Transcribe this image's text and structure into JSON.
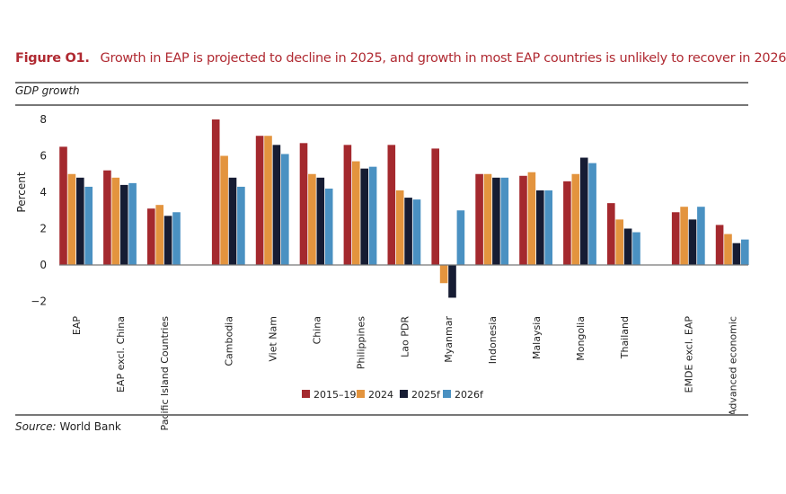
{
  "figure": {
    "label": "Figure O1.",
    "title": "Growth in EAP is projected to decline in 2025, and growth in most EAP countries is unlikely to recover in 2026",
    "subtitle": "GDP growth",
    "source_label": "Source:",
    "source_text": "World Bank"
  },
  "chart_data": {
    "type": "bar",
    "ylabel": "Percent",
    "ylim": [
      -2,
      8
    ],
    "yticks": [
      -2,
      0,
      2,
      4,
      6,
      8
    ],
    "ytick_labels": [
      "−2",
      "0",
      "2",
      "4",
      "6",
      "8"
    ],
    "legend_position": "bottom",
    "grid": false,
    "categories": [
      "EAP",
      "EAP excl. China",
      "Pacific Island Countries",
      "Cambodia",
      "Viet Nam",
      "China",
      "Philippines",
      "Lao PDR",
      "Myanmar",
      "Indonesia",
      "Malaysia",
      "Mongolia",
      "Thailand",
      "EMDE excl. EAP",
      "Advanced economic"
    ],
    "series": [
      {
        "name": "2015–19",
        "color": "#a4292e",
        "values": [
          6.5,
          5.2,
          3.1,
          8.0,
          7.1,
          6.7,
          6.6,
          6.6,
          6.4,
          5.0,
          4.9,
          4.6,
          3.4,
          2.9,
          2.2
        ]
      },
      {
        "name": "2024",
        "color": "#e3943e",
        "values": [
          5.0,
          4.8,
          3.3,
          6.0,
          7.1,
          5.0,
          5.7,
          4.1,
          -1.0,
          5.0,
          5.1,
          5.0,
          2.5,
          3.2,
          1.7
        ]
      },
      {
        "name": "2025f",
        "color": "#161c33",
        "values": [
          4.8,
          4.4,
          2.7,
          4.8,
          6.6,
          4.8,
          5.3,
          3.7,
          -1.8,
          4.8,
          4.1,
          5.9,
          2.0,
          2.5,
          1.2
        ]
      },
      {
        "name": "2026f",
        "color": "#4a91c2",
        "values": [
          4.3,
          4.5,
          2.9,
          4.3,
          6.1,
          4.2,
          5.4,
          3.6,
          3.0,
          4.8,
          4.1,
          5.6,
          1.8,
          3.2,
          1.4
        ]
      }
    ]
  }
}
